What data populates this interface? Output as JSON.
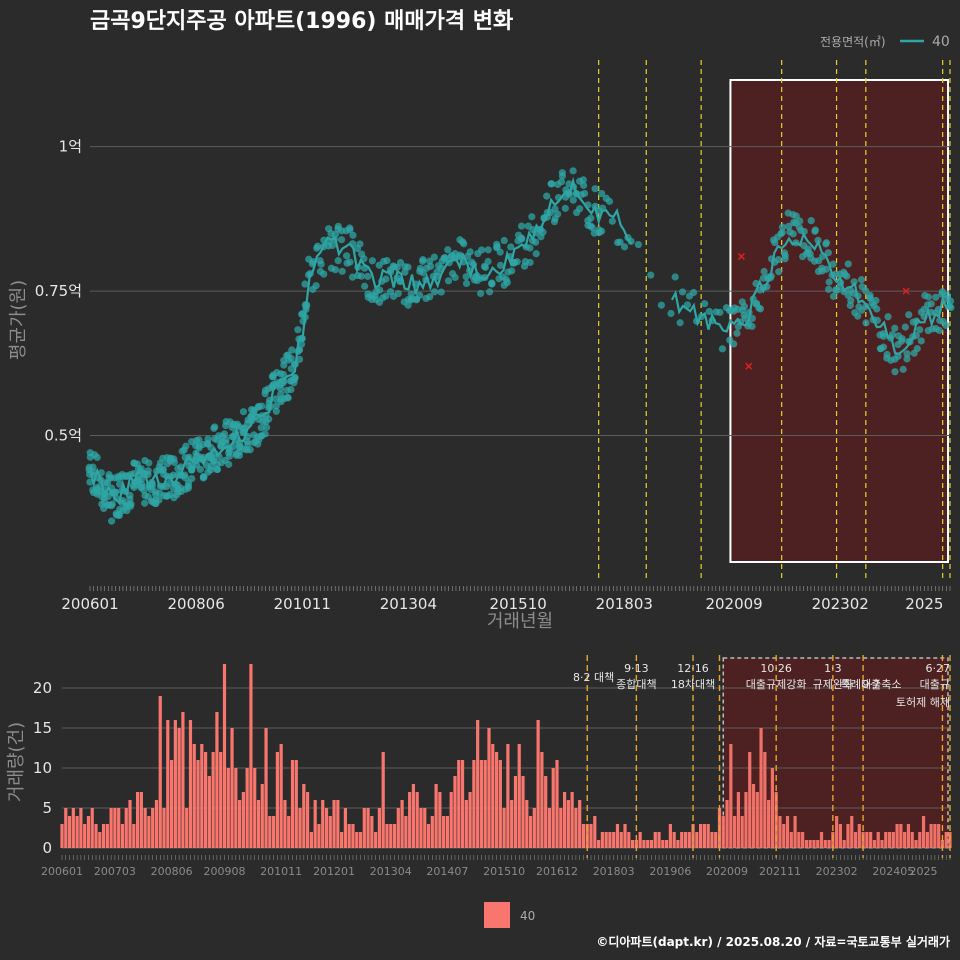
{
  "header": {
    "title": "금곡9단지주공 아파트(1996) 매매가격 변화",
    "legend_title": "전용면적(㎡)",
    "legend_value": "40"
  },
  "footer": {
    "credit": "©디아파트(dapt.kr) / 2025.08.20 / 자료=국토교통부 실거래가"
  },
  "colors": {
    "background": "#2b2b2b",
    "price_series": "#2fa6a6",
    "volume_bars": "#f8766d",
    "policy_line_top": "#e6d22e",
    "policy_line_bottom": "#e6a52e",
    "highlight_fill": "#5a1f1f",
    "outlier_marker": "#e02020"
  },
  "legend_bottom": {
    "label": "40"
  },
  "chart_data": [
    {
      "type": "scatter",
      "subtype": "scatter with monthly average line",
      "xlabel": "거래년월",
      "ylabel": "평균가(원)",
      "x_ticks": [
        "200601",
        "200806",
        "201011",
        "201304",
        "201510",
        "201803",
        "202009",
        "202302",
        "2025"
      ],
      "y_ticks": [
        {
          "value": 0.5,
          "label": "0.5억"
        },
        {
          "value": 0.75,
          "label": "0.75억"
        },
        {
          "value": 1.0,
          "label": "1억"
        }
      ],
      "x_range": [
        "2006-01",
        "2025-08"
      ],
      "ylim": [
        0.25,
        1.15
      ],
      "y_unit": "억원",
      "grid": true,
      "legend_position": "top-right",
      "highlight_period": [
        "2020-08",
        "2025-08"
      ],
      "policy_dates": [
        "2017-08",
        "2018-09",
        "2019-12",
        "2021-10",
        "2023-01",
        "2023-09",
        "2025-06",
        "2025-08"
      ],
      "outliers": [
        {
          "x": "2020-11",
          "y": 0.81
        },
        {
          "x": "2021-01",
          "y": 0.62
        },
        {
          "x": "2024-08",
          "y": 0.75
        }
      ],
      "series": [
        {
          "name": "40",
          "anchors": [
            [
              "2006-01",
              0.44
            ],
            [
              "2006-07",
              0.39
            ],
            [
              "2007-01",
              0.42
            ],
            [
              "2007-07",
              0.42
            ],
            [
              "2008-01",
              0.43
            ],
            [
              "2008-06",
              0.46
            ],
            [
              "2008-12",
              0.48
            ],
            [
              "2009-06",
              0.5
            ],
            [
              "2009-12",
              0.53
            ],
            [
              "2010-04",
              0.58
            ],
            [
              "2010-09",
              0.62
            ],
            [
              "2010-11",
              0.68
            ],
            [
              "2011-01",
              0.77
            ],
            [
              "2011-06",
              0.83
            ],
            [
              "2011-12",
              0.82
            ],
            [
              "2012-06",
              0.77
            ],
            [
              "2013-01",
              0.77
            ],
            [
              "2013-06",
              0.76
            ],
            [
              "2014-01",
              0.78
            ],
            [
              "2014-06",
              0.8
            ],
            [
              "2015-01",
              0.78
            ],
            [
              "2015-06",
              0.8
            ],
            [
              "2015-10",
              0.82
            ],
            [
              "2016-03",
              0.85
            ],
            [
              "2016-06",
              0.89
            ],
            [
              "2016-12",
              0.93
            ],
            [
              "2017-06",
              0.89
            ],
            [
              "2017-12",
              0.88
            ],
            [
              "2018-06",
              0.83
            ],
            [
              "2018-12",
              0.77
            ],
            [
              "2019-06",
              0.73
            ],
            [
              "2019-12",
              0.7
            ],
            [
              "2020-06",
              0.69
            ],
            [
              "2020-12",
              0.7
            ],
            [
              "2021-06",
              0.78
            ],
            [
              "2021-12",
              0.85
            ],
            [
              "2022-06",
              0.84
            ],
            [
              "2022-12",
              0.78
            ],
            [
              "2023-06",
              0.75
            ],
            [
              "2023-12",
              0.7
            ],
            [
              "2024-06",
              0.64
            ],
            [
              "2024-12",
              0.7
            ],
            [
              "2025-06",
              0.72
            ]
          ]
        }
      ]
    },
    {
      "type": "bar",
      "ylabel": "거래량(건)",
      "x_ticks": [
        "200601",
        "200703",
        "200806",
        "200908",
        "201011",
        "201201",
        "201304",
        "201407",
        "201510",
        "201612",
        "201803",
        "201906",
        "202009",
        "202111",
        "202302",
        "202405",
        "2025"
      ],
      "y_ticks": [
        0,
        5,
        10,
        15,
        20
      ],
      "ylim": [
        0,
        24
      ],
      "grid": true,
      "highlight_period": [
        "2020-08",
        "2025-08"
      ],
      "policies": [
        {
          "date": "2017-08",
          "lines": [
            "8·2 대책"
          ]
        },
        {
          "date": "2018-09",
          "lines": [
            "9·13",
            "종합대책"
          ]
        },
        {
          "date": "2019-12",
          "lines": [
            "12·16",
            "18차대책"
          ]
        },
        {
          "date": "2020-07",
          "lines": []
        },
        {
          "date": "2021-10",
          "lines": [
            "10·26",
            "대출규제강화"
          ]
        },
        {
          "date": "2023-01",
          "lines": [
            "1·3",
            "규제완화"
          ]
        },
        {
          "date": "2023-09",
          "lines": [
            "9·7",
            "특례대출축소"
          ]
        },
        {
          "date": "2025-06",
          "lines": [
            "6·27",
            "대출규"
          ]
        },
        {
          "date": "2025-08",
          "lines": [
            "토허제 해제"
          ]
        }
      ],
      "series": [
        {
          "name": "40",
          "anchors": [
            [
              "2006-01",
              4
            ],
            [
              "2006-06",
              4
            ],
            [
              "2007-01",
              3
            ],
            [
              "2007-06",
              5
            ],
            [
              "2008-01",
              6
            ],
            [
              "2008-06",
              12
            ],
            [
              "2008-12",
              10
            ],
            [
              "2009-06",
              8
            ],
            [
              "2009-08",
              16
            ],
            [
              "2010-01",
              12
            ],
            [
              "2010-06",
              8
            ],
            [
              "2011-01",
              9
            ],
            [
              "2011-06",
              5
            ],
            [
              "2012-01",
              4
            ],
            [
              "2012-06",
              3
            ],
            [
              "2013-01",
              4
            ],
            [
              "2013-06",
              5
            ],
            [
              "2014-01",
              5
            ],
            [
              "2014-06",
              7
            ],
            [
              "2015-01",
              8
            ],
            [
              "2015-06",
              11
            ],
            [
              "2015-12",
              8
            ],
            [
              "2016-06",
              10
            ],
            [
              "2016-12",
              8
            ],
            [
              "2017-06",
              4
            ],
            [
              "2017-12",
              2
            ],
            [
              "2018-06",
              2
            ],
            [
              "2018-12",
              1
            ],
            [
              "2019-06",
              2
            ],
            [
              "2019-12",
              2
            ],
            [
              "2020-06",
              3
            ],
            [
              "2020-12",
              5
            ],
            [
              "2021-06",
              9
            ],
            [
              "2021-12",
              4
            ],
            [
              "2022-06",
              1
            ],
            [
              "2022-12",
              2
            ],
            [
              "2023-06",
              3
            ],
            [
              "2023-12",
              2
            ],
            [
              "2024-06",
              2
            ],
            [
              "2024-12",
              3
            ],
            [
              "2025-06",
              2
            ]
          ],
          "spikes": [
            [
              "2008-03",
              19
            ],
            [
              "2008-07",
              16
            ],
            [
              "2009-08",
              23
            ],
            [
              "2010-03",
              23
            ],
            [
              "2009-06",
              17
            ],
            [
              "2010-07",
              15
            ],
            [
              "2013-02",
              12
            ],
            [
              "2015-03",
              16
            ],
            [
              "2016-07",
              16
            ],
            [
              "2015-11",
              13
            ],
            [
              "2014-11",
              11
            ],
            [
              "2021-06",
              15
            ],
            [
              "2021-03",
              12
            ],
            [
              "2020-10",
              13
            ]
          ]
        }
      ]
    }
  ]
}
